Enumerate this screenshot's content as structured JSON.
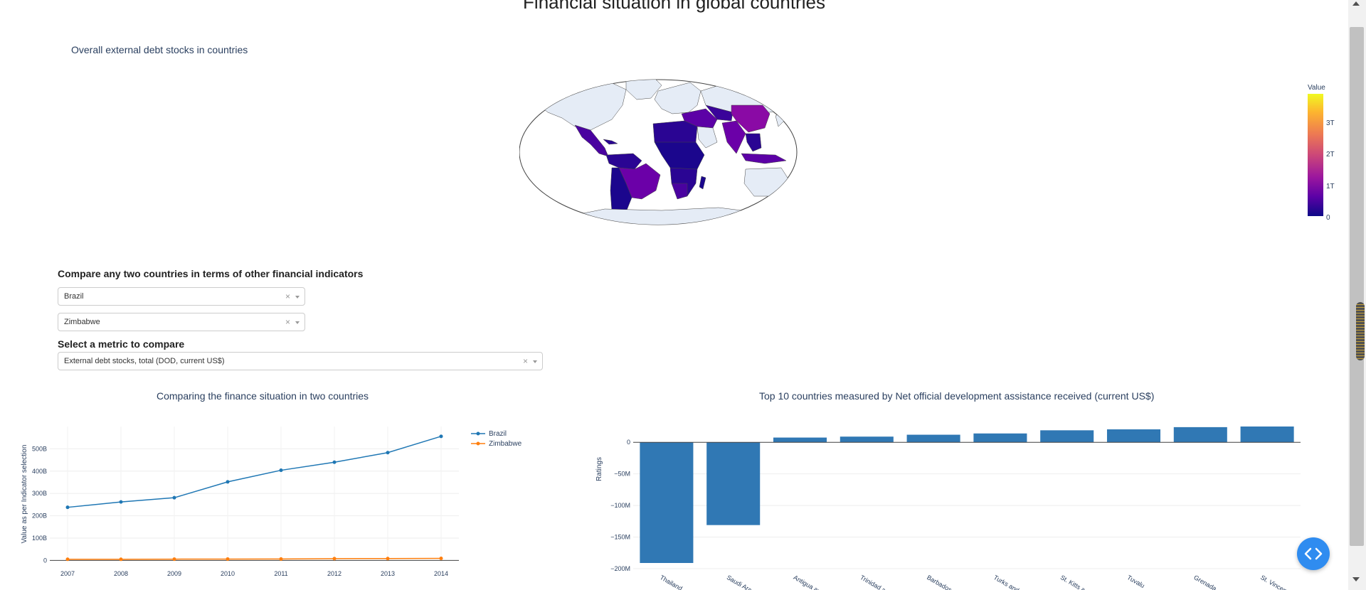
{
  "page": {
    "title": "Financial situation in global countries"
  },
  "map": {
    "title": "Overall external debt stocks in countries",
    "colorbar": {
      "title": "Value",
      "ticks": [
        "3T",
        "2T",
        "1T",
        "0"
      ]
    },
    "colorscale": [
      "#0d0887",
      "#5c01a6",
      "#9c179e",
      "#cc4778",
      "#ed7953",
      "#fdb42f",
      "#f0f921"
    ],
    "land_color": "#e5ecf6"
  },
  "compare": {
    "heading": "Compare any two countries in terms of other financial indicators",
    "country1": "Brazil",
    "country2": "Zimbabwe",
    "clear_icon": "×",
    "metric_heading": "Select a metric to compare",
    "metric": "External debt stocks, total (DOD, current US$)"
  },
  "line_chart": {
    "title": "Comparing the finance situation in two countries"
  },
  "bar_chart": {
    "title": "Top 10 countries measured by Net official development assistance received (current US$)"
  },
  "chart_data": [
    {
      "type": "line",
      "title": "Comparing the finance situation in two countries",
      "xlabel": "",
      "ylabel": "Value as per Indicator selection",
      "x": [
        2007,
        2008,
        2009,
        2010,
        2011,
        2012,
        2013,
        2014
      ],
      "x_tick_labels": [
        "2007",
        "2008",
        "2009",
        "2010",
        "2011",
        "2012",
        "2013",
        "2014"
      ],
      "y_ticks": [
        0,
        100,
        200,
        300,
        400,
        500
      ],
      "y_tick_labels": [
        "0",
        "100B",
        "200B",
        "300B",
        "400B",
        "500B"
      ],
      "ylim": [
        -5,
        600
      ],
      "y_unit": "billions",
      "series": [
        {
          "name": "Brazil",
          "color": "#1f77b4",
          "values": [
            238,
            262,
            281,
            352,
            404,
            440,
            483,
            556
          ]
        },
        {
          "name": "Zimbabwe",
          "color": "#ff7f0e",
          "values": [
            5.3,
            5.2,
            5.9,
            6.3,
            6.4,
            8.3,
            8.6,
            9.2
          ]
        }
      ],
      "legend_position": "top-right",
      "grid": true
    },
    {
      "type": "bar",
      "title": "Top 10 countries measured by Net official development assistance received (current US$)",
      "xlabel": "",
      "ylabel": "Ratings",
      "categories": [
        "Thailand",
        "Saudi Arabia",
        "Antigua and Barbuda",
        "Trinidad and Tobago",
        "Barbados",
        "Turks and Caicos Islands",
        "St. Kitts and Nevis",
        "Tuvalu",
        "Grenada",
        "St. Vincent and the Grenadines"
      ],
      "x_tick_labels": [
        "Thailand",
        "Saudi Ara",
        "Antigua an",
        "Trinidad an",
        "Barbados",
        "Turks and",
        "St. Kitts a",
        "Tuvalu",
        "Grenada",
        "St. Vincen"
      ],
      "values": [
        -191,
        -131,
        7.5,
        9,
        12,
        14,
        19,
        20.5,
        24,
        25
      ],
      "y_unit": "millions",
      "y_ticks": [
        0,
        -50,
        -100,
        -150,
        -200
      ],
      "y_tick_labels": [
        "0",
        "−50M",
        "−100M",
        "−150M",
        "−200M"
      ],
      "ylim": [
        -200,
        25
      ],
      "color": "#3078b4",
      "grid": true
    }
  ]
}
